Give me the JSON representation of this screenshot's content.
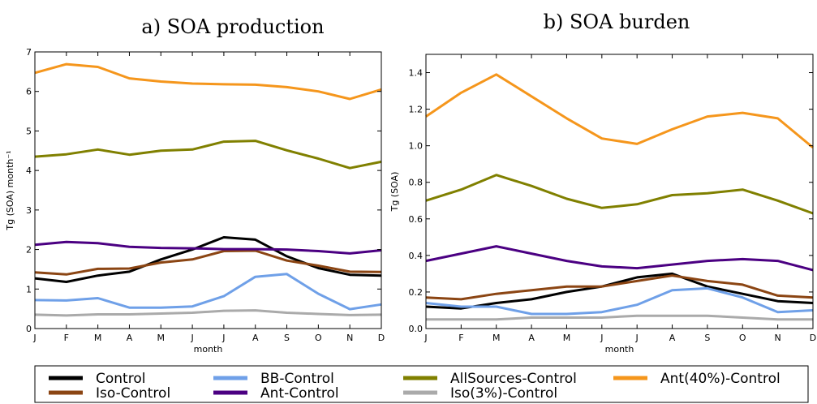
{
  "chart_data": [
    {
      "type": "line",
      "title": "a) SOA production",
      "xlabel": "month",
      "ylabel": "Tg (SOA) month⁻¹",
      "categories": [
        "J",
        "F",
        "M",
        "A",
        "M",
        "J",
        "J",
        "A",
        "S",
        "O",
        "N",
        "D"
      ],
      "ylim": [
        0,
        7
      ],
      "yticks": [
        "0",
        "1",
        "2",
        "3",
        "4",
        "5",
        "6",
        "7"
      ],
      "grid": false,
      "series": [
        {
          "name": "Control",
          "color": "#000000",
          "values": [
            1.27,
            1.18,
            1.34,
            1.44,
            1.75,
            2.0,
            2.31,
            2.25,
            1.83,
            1.53,
            1.36,
            1.34
          ]
        },
        {
          "name": "BB-Control",
          "color": "#6fa0e8",
          "values": [
            0.72,
            0.71,
            0.77,
            0.53,
            0.53,
            0.56,
            0.82,
            1.31,
            1.38,
            0.88,
            0.49,
            0.61
          ]
        },
        {
          "name": "AllSources-Control",
          "color": "#808000",
          "values": [
            4.35,
            4.41,
            4.53,
            4.4,
            4.5,
            4.53,
            4.73,
            4.75,
            4.51,
            4.3,
            4.06,
            4.22
          ]
        },
        {
          "name": "Ant(40%)-Control",
          "color": "#f5961c",
          "values": [
            6.47,
            6.69,
            6.62,
            6.33,
            6.25,
            6.2,
            6.18,
            6.17,
            6.11,
            6.0,
            5.81,
            6.05
          ]
        },
        {
          "name": "Iso-Control",
          "color": "#8b4513",
          "values": [
            1.42,
            1.37,
            1.51,
            1.52,
            1.67,
            1.75,
            1.96,
            1.97,
            1.72,
            1.59,
            1.44,
            1.43
          ]
        },
        {
          "name": "Ant-Control",
          "color": "#4b0082",
          "values": [
            2.12,
            2.19,
            2.16,
            2.07,
            2.04,
            2.03,
            2.01,
            2.01,
            2.0,
            1.96,
            1.9,
            1.98
          ]
        },
        {
          "name": "Iso(3%)-Control",
          "color": "#aaaaaa",
          "values": [
            0.35,
            0.33,
            0.36,
            0.36,
            0.38,
            0.4,
            0.45,
            0.46,
            0.4,
            0.37,
            0.34,
            0.35
          ]
        }
      ]
    },
    {
      "type": "line",
      "title": "b) SOA burden",
      "xlabel": "month",
      "ylabel": "Tg (SOA)",
      "categories": [
        "J",
        "F",
        "M",
        "A",
        "M",
        "J",
        "J",
        "A",
        "S",
        "O",
        "N",
        "D"
      ],
      "ylim": [
        0,
        1.5
      ],
      "yticks": [
        "0.0",
        "0.2",
        "0.4",
        "0.6",
        "0.8",
        "1.0",
        "1.2",
        "1.4"
      ],
      "grid": false,
      "series": [
        {
          "name": "Control",
          "color": "#000000",
          "values": [
            0.12,
            0.11,
            0.14,
            0.16,
            0.2,
            0.23,
            0.28,
            0.3,
            0.23,
            0.19,
            0.15,
            0.14
          ]
        },
        {
          "name": "BB-Control",
          "color": "#6fa0e8",
          "values": [
            0.14,
            0.12,
            0.12,
            0.08,
            0.08,
            0.09,
            0.13,
            0.21,
            0.22,
            0.17,
            0.09,
            0.1
          ]
        },
        {
          "name": "AllSources-Control",
          "color": "#808000",
          "values": [
            0.7,
            0.76,
            0.84,
            0.78,
            0.71,
            0.66,
            0.68,
            0.73,
            0.74,
            0.76,
            0.7,
            0.63
          ]
        },
        {
          "name": "Ant(40%)-Control",
          "color": "#f5961c",
          "values": [
            1.16,
            1.29,
            1.39,
            1.27,
            1.15,
            1.04,
            1.01,
            1.09,
            1.16,
            1.18,
            1.15,
            0.99
          ]
        },
        {
          "name": "Iso-Control",
          "color": "#8b4513",
          "values": [
            0.17,
            0.16,
            0.19,
            0.21,
            0.23,
            0.23,
            0.26,
            0.29,
            0.26,
            0.24,
            0.18,
            0.17
          ]
        },
        {
          "name": "Ant-Control",
          "color": "#4b0082",
          "values": [
            0.37,
            0.41,
            0.45,
            0.41,
            0.37,
            0.34,
            0.33,
            0.35,
            0.37,
            0.38,
            0.37,
            0.32
          ]
        },
        {
          "name": "Iso(3%)-Control",
          "color": "#aaaaaa",
          "values": [
            0.05,
            0.05,
            0.05,
            0.06,
            0.06,
            0.06,
            0.07,
            0.07,
            0.07,
            0.06,
            0.05,
            0.05
          ]
        }
      ]
    }
  ],
  "legend": {
    "placement": "bottom",
    "rows": [
      [
        {
          "label": "Control",
          "color": "#000000"
        },
        {
          "label": "BB-Control",
          "color": "#6fa0e8"
        },
        {
          "label": "AllSources-Control",
          "color": "#808000"
        },
        {
          "label": "Ant(40%)-Control",
          "color": "#f5961c"
        }
      ],
      [
        {
          "label": "Iso-Control",
          "color": "#8b4513"
        },
        {
          "label": "Ant-Control",
          "color": "#4b0082"
        },
        {
          "label": "Iso(3%)-Control",
          "color": "#aaaaaa"
        }
      ]
    ]
  }
}
